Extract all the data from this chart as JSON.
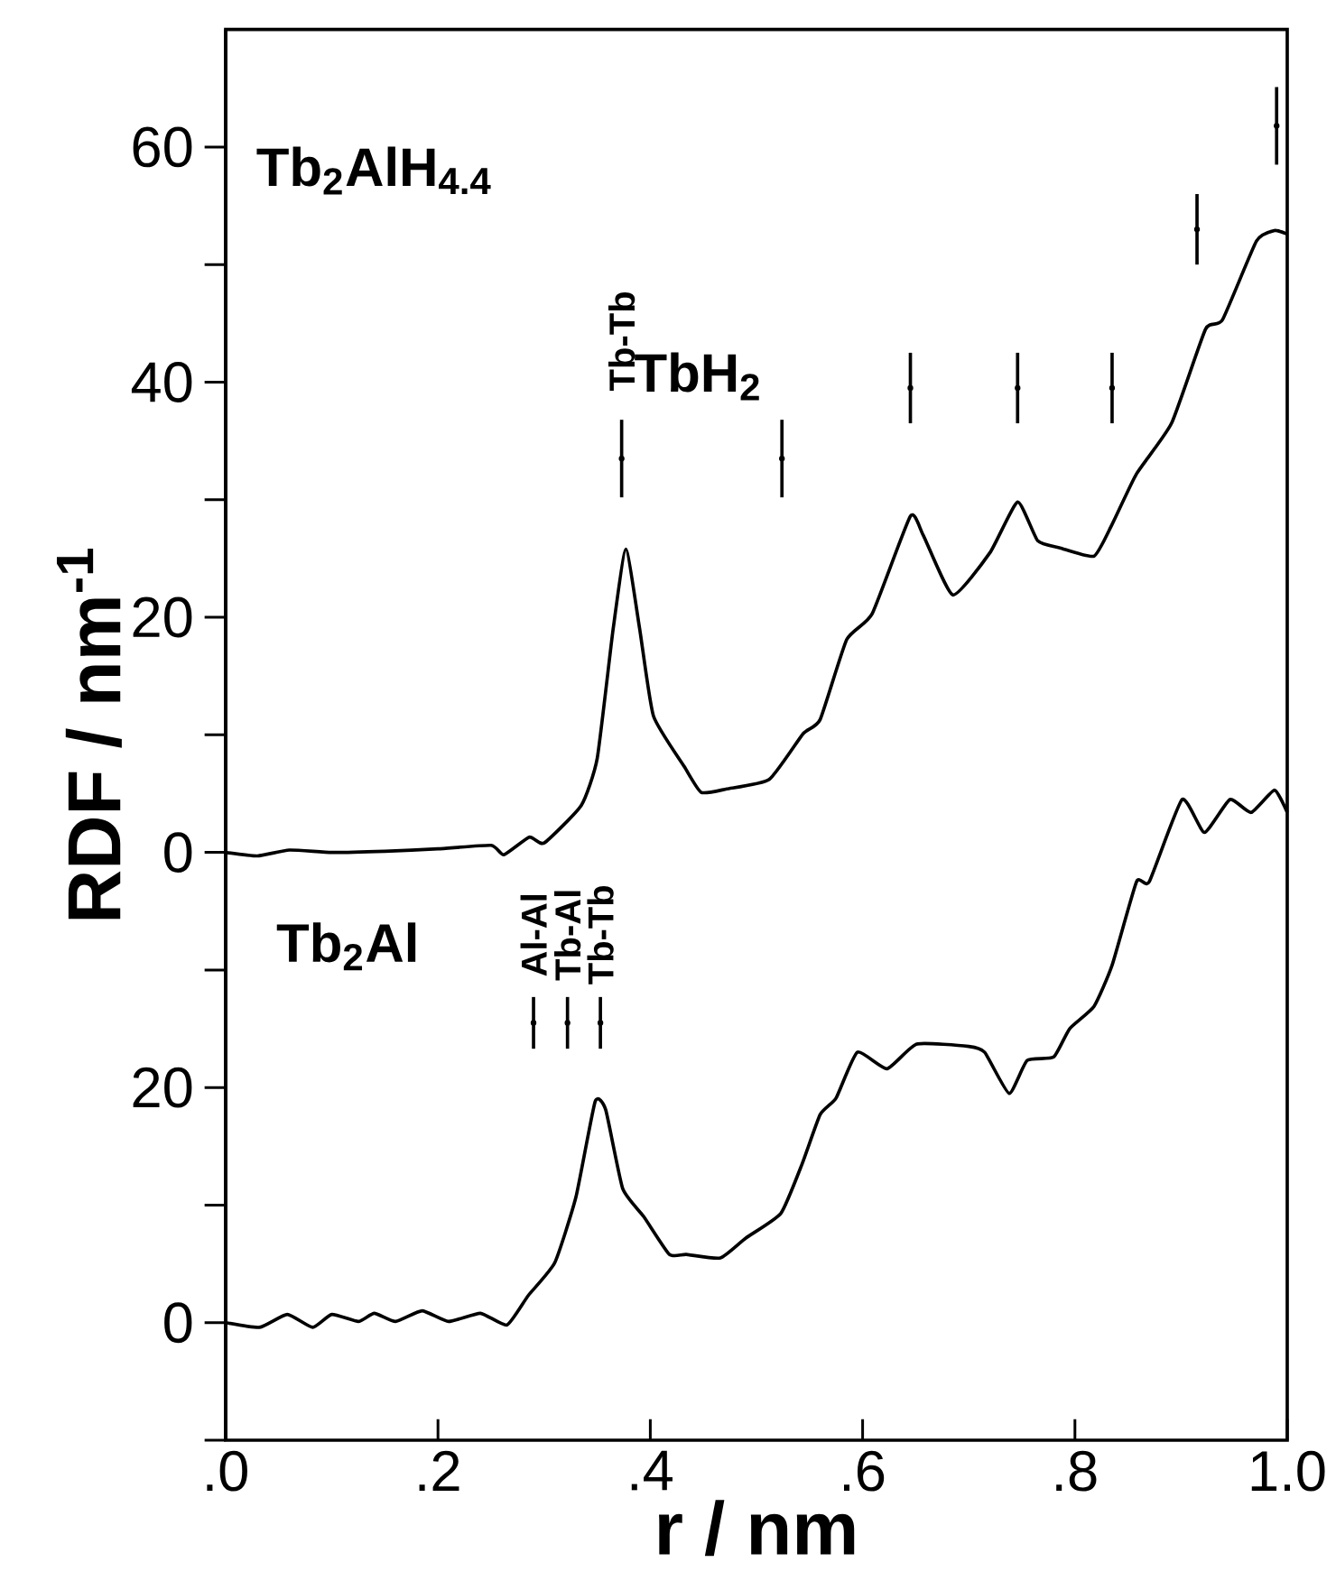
{
  "chart_data": {
    "type": "line",
    "xlabel": "r / nm",
    "ylabel": "RDF  /  nm$^{-1}$",
    "xlim": [
      0,
      1.0
    ],
    "ylim": [
      -50,
      70
    ],
    "y2lim": [
      -10,
      110
    ],
    "xticks": [
      {
        "value": 0,
        "label": ".0"
      },
      {
        "value": 0.2,
        "label": ".2"
      },
      {
        "value": 0.4,
        "label": ".4"
      },
      {
        "value": 0.6,
        "label": ".6"
      },
      {
        "value": 0.8,
        "label": ".8"
      },
      {
        "value": 1.0,
        "label": "1.0"
      }
    ],
    "yticks": [
      0,
      {
        "value": 10,
        "label": null
      },
      20,
      {
        "value": 30,
        "label": null
      },
      40,
      {
        "value": 50,
        "label": null
      },
      60
    ],
    "y2ticks": [
      {
        "value": -10,
        "label": null
      },
      0,
      {
        "value": 10,
        "label": null
      },
      20,
      {
        "value": 30,
        "label": null
      }
    ],
    "series": [
      {
        "color": "#000000",
        "x": [
          0,
          0.03,
          0.06,
          0.1,
          0.15,
          0.2,
          0.25,
          0.262,
          0.286,
          0.3,
          0.335,
          0.35,
          0.365,
          0.377,
          0.39,
          0.403,
          0.432,
          0.448,
          0.472,
          0.512,
          0.544,
          0.56,
          0.585,
          0.609,
          0.645,
          0.657,
          0.685,
          0.72,
          0.746,
          0.765,
          0.786,
          0.818,
          0.835,
          0.858,
          0.891,
          0.923,
          0.939,
          0.971,
          0.988,
          1.0
        ],
        "values": [
          0,
          -0.3,
          0.2,
          0,
          0.1,
          0.3,
          0.6,
          -0.2,
          1.3,
          0.8,
          4,
          8,
          19,
          25.8,
          19,
          11.6,
          7.3,
          5.1,
          5.4,
          6.2,
          10.1,
          11.3,
          18.1,
          20.3,
          28.6,
          27,
          21.9,
          25.5,
          29.8,
          26.5,
          25.9,
          25.2,
          27.9,
          32.2,
          36.5,
          44.5,
          45.3,
          52,
          52.9,
          52.6
        ]
      },
      {
        "color": "#000000",
        "axis": "y2",
        "x": [
          0,
          0.032,
          0.058,
          0.082,
          0.1,
          0.125,
          0.14,
          0.16,
          0.185,
          0.21,
          0.24,
          0.265,
          0.285,
          0.31,
          0.33,
          0.348,
          0.358,
          0.374,
          0.394,
          0.418,
          0.434,
          0.466,
          0.49,
          0.523,
          0.543,
          0.56,
          0.575,
          0.595,
          0.623,
          0.651,
          0.7,
          0.715,
          0.738,
          0.755,
          0.78,
          0.795,
          0.818,
          0.835,
          0.858,
          0.87,
          0.901,
          0.922,
          0.946,
          0.966,
          0.988,
          1.0
        ],
        "values": [
          0,
          -0.4,
          0.7,
          -0.4,
          0.7,
          0.1,
          0.8,
          0.1,
          1,
          0.1,
          0.8,
          -0.2,
          2.3,
          5.1,
          10.7,
          18.8,
          18.1,
          11.4,
          9,
          5.8,
          5.8,
          5.5,
          7.2,
          9.3,
          13.5,
          17.7,
          19.1,
          23,
          21.6,
          23.7,
          23.5,
          23,
          19.5,
          22.3,
          22.6,
          25,
          26.9,
          30.4,
          37.5,
          37.5,
          44.5,
          41.7,
          44.5,
          43.4,
          45.3,
          43.4
        ]
      },
      {
        "type": "scatter",
        "marker": "circle",
        "color": "#000000",
        "x": [
          0.373,
          0.524,
          0.645,
          0.746,
          0.835,
          0.915,
          0.99
        ],
        "values": [
          33.5,
          33.5,
          39.5,
          39.5,
          39.5,
          53,
          61.8
        ],
        "errors": [
          3.3,
          3.3,
          3,
          3,
          3,
          3,
          3.3
        ]
      },
      {
        "type": "scatter",
        "marker": "circle",
        "color": "#000000",
        "axis": "y2",
        "x": [
          0.29,
          0.322,
          0.353
        ],
        "values": [
          25.5,
          25.5,
          25.5
        ],
        "errors": [
          2.2,
          2.2,
          2.2
        ]
      }
    ],
    "annotations": [
      "Tb$_{2}$AlH$_{4.4}$",
      "TbH$_{2}$",
      "Tb$_{2}$Al",
      "Tb-Tb",
      "Al-Al",
      "Tb-Al",
      "Tb-Tb"
    ]
  }
}
